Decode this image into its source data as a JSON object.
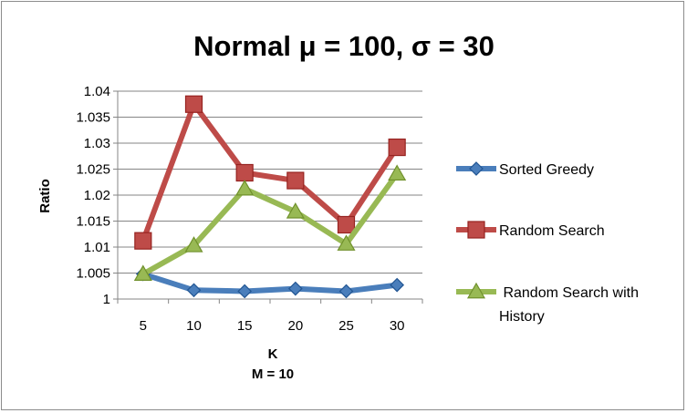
{
  "chart_data": {
    "type": "line",
    "title": "Normal μ = 100,  σ = 30",
    "xlabel": "K",
    "xlabel_sub": "M = 10",
    "ylabel": "Ratio",
    "categories": [
      "5",
      "10",
      "15",
      "20",
      "25",
      "30"
    ],
    "ylim": [
      1,
      1.04
    ],
    "yticks": [
      "1",
      "1.005",
      "1.01",
      "1.015",
      "1.02",
      "1.025",
      "1.03",
      "1.035",
      "1.04"
    ],
    "grid": true,
    "legend_position": "right",
    "series": [
      {
        "name": "Sorted Greedy",
        "values": [
          1.0048,
          1.0017,
          1.0015,
          1.002,
          1.0015,
          1.0027
        ],
        "color": "#4a7ebb",
        "marker": "diamond"
      },
      {
        "name": "Random Search",
        "values": [
          1.0112,
          1.0375,
          1.0243,
          1.0228,
          1.0143,
          1.0292
        ],
        "color": "#be4b48",
        "marker": "square"
      },
      {
        "name": "Random Search with History",
        "name_lines": [
          " Random Search with",
          "History"
        ],
        "values": [
          1.0048,
          1.0103,
          1.0212,
          1.0168,
          1.0106,
          1.0241
        ],
        "color": "#98b954",
        "marker": "triangle"
      }
    ]
  }
}
